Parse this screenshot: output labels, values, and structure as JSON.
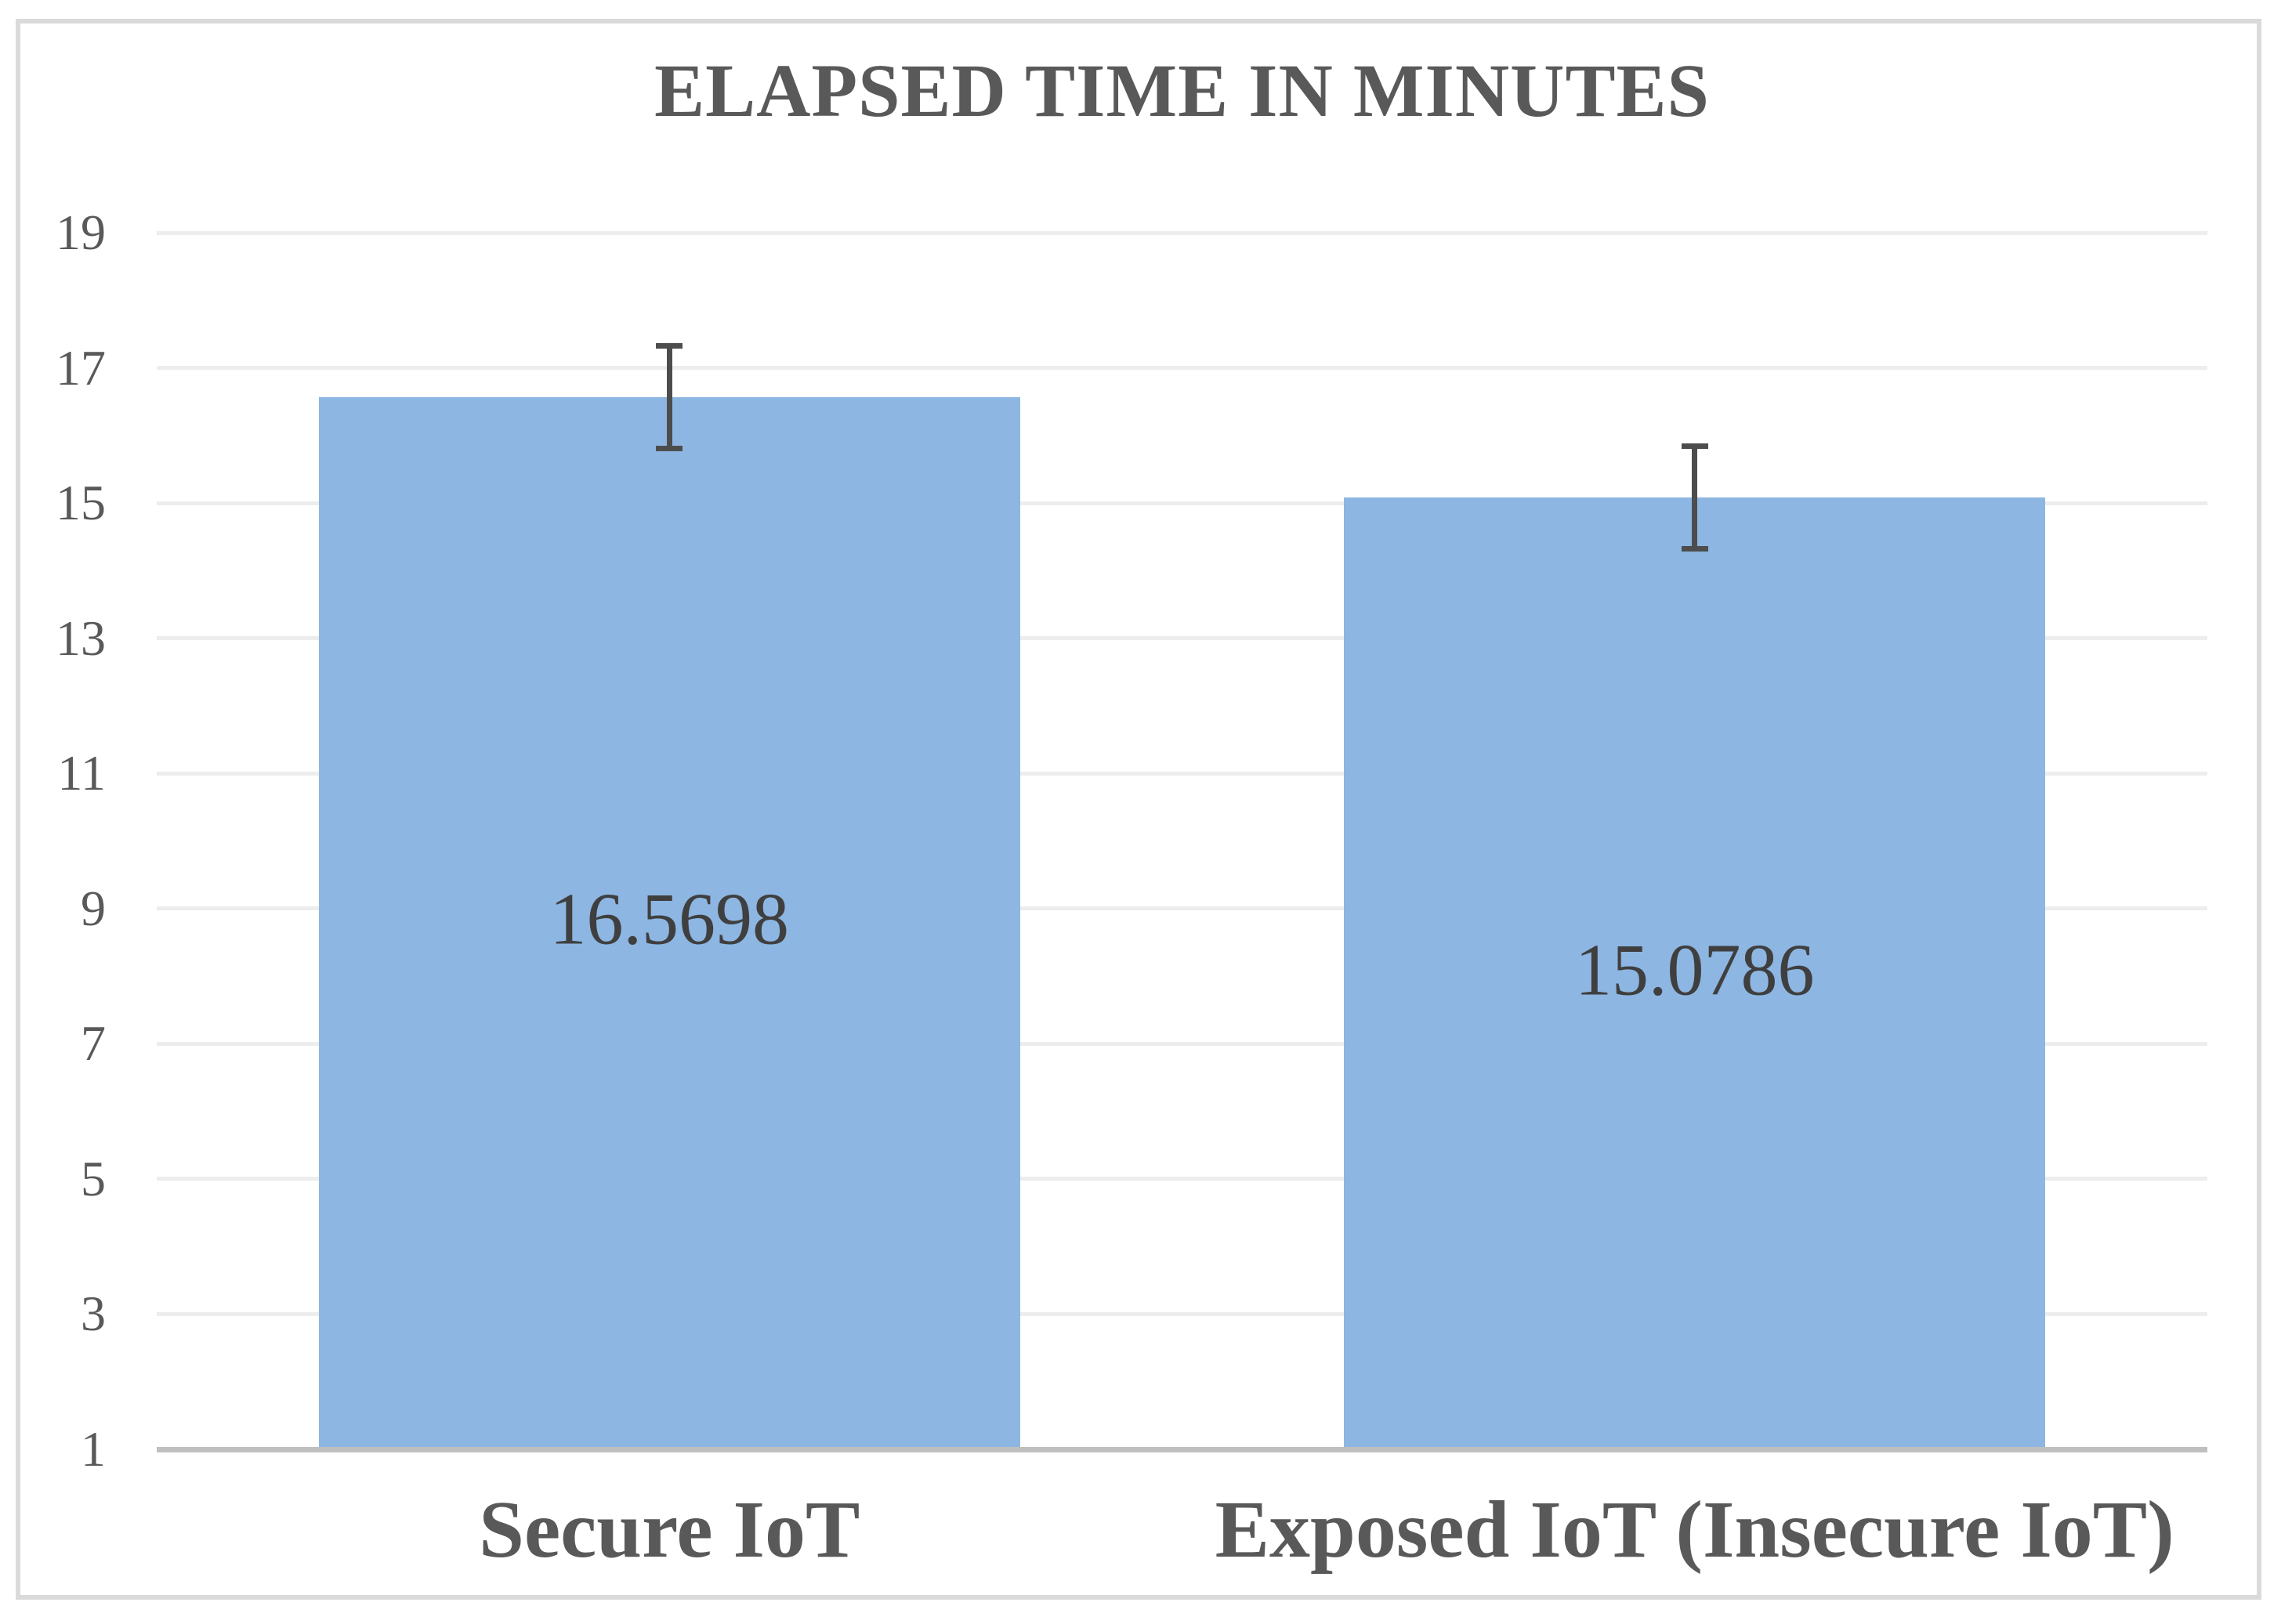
{
  "chart_data": {
    "type": "bar",
    "title": "ELAPSED TIME IN MINUTES",
    "categories": [
      "Secure IoT",
      "Exposed IoT (Insecure IoT)"
    ],
    "values": [
      16.5698,
      15.0786
    ],
    "data_labels": [
      "16.5698",
      "15.0786"
    ],
    "error_bars": {
      "plus": 0.76,
      "minus": 0.76
    },
    "y_axis": {
      "min": 1,
      "max": 19,
      "tick_step": 2,
      "ticks": [
        19,
        17,
        15,
        13,
        11,
        9,
        7,
        5,
        3,
        1
      ]
    },
    "x_axis": {
      "labels": [
        "Secure IoT",
        "Exposed IoT (Insecure IoT)"
      ]
    },
    "legend": {
      "visible": false
    },
    "grid": true,
    "ylim": [
      1,
      19
    ],
    "colors": {
      "bar_fill": "#8DB6E2",
      "gridline": "#EDEDED",
      "axis_line": "#BFBFBF",
      "title_text": "#595959",
      "tick_text": "#595959",
      "data_label_text": "#3F3F3F",
      "error_bar": "#4D4D4D",
      "frame_border": "#DADADA"
    }
  }
}
